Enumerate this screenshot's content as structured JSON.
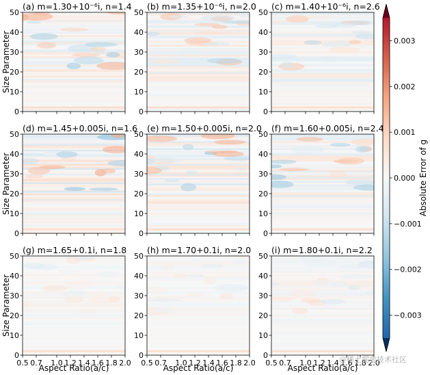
{
  "chart_data": {
    "type": "heatmap",
    "panels": [
      {
        "title": "(a) m=1.30+10⁻⁶i, n=1.4"
      },
      {
        "title": "(b) m=1.35+10⁻⁶i, n=2.0"
      },
      {
        "title": "(c) m=1.40+10⁻⁶i, n=2.6"
      },
      {
        "title": "(d) m=1.45+0.005i, n=1.6"
      },
      {
        "title": "(e) m=1.50+0.005i, n=2.0"
      },
      {
        "title": "(f) m=1.60+0.005i, n=2.4"
      },
      {
        "title": "(g) m=1.65+0.1i, n=1.8"
      },
      {
        "title": "(h) m=1.70+0.1i, n=2.0"
      },
      {
        "title": "(i) m=1.80+0.1i, n=2.2"
      }
    ],
    "xlabel": "Aspect Ratio(a/c)",
    "ylabel": "Size Parameter",
    "xlim": [
      0.5,
      2.0
    ],
    "ylim": [
      0,
      50
    ],
    "xticks": [
      "0.5",
      "0.7",
      "1.0",
      "1.2",
      "1.4",
      "1.6",
      "1.8",
      "2.0"
    ],
    "xtick_values": [
      0.5,
      0.7,
      1.0,
      1.2,
      1.4,
      1.6,
      1.8,
      2.0
    ],
    "yticks": [
      "0",
      "10",
      "20",
      "30",
      "40",
      "50"
    ],
    "ytick_values": [
      0,
      10,
      20,
      30,
      40,
      50
    ],
    "colorbar": {
      "label": "Absolute Error of g",
      "ticks": [
        "0.003",
        "0.002",
        "0.001",
        "0.000",
        "−0.001",
        "−0.002",
        "−0.003"
      ],
      "tick_values": [
        0.003,
        0.002,
        0.001,
        0.0,
        -0.001,
        -0.002,
        -0.003
      ],
      "range": [
        -0.0035,
        0.0035
      ],
      "extend": "both",
      "colormap": [
        "#2166ac",
        "#4393c3",
        "#92c5de",
        "#d1e5f0",
        "#f7f7f7",
        "#fddbc7",
        "#f4a582",
        "#d6604d",
        "#b2182b"
      ],
      "under_color": "#053061",
      "over_color": "#67001f"
    }
  },
  "watermark": "@稀土掘金技术社区"
}
